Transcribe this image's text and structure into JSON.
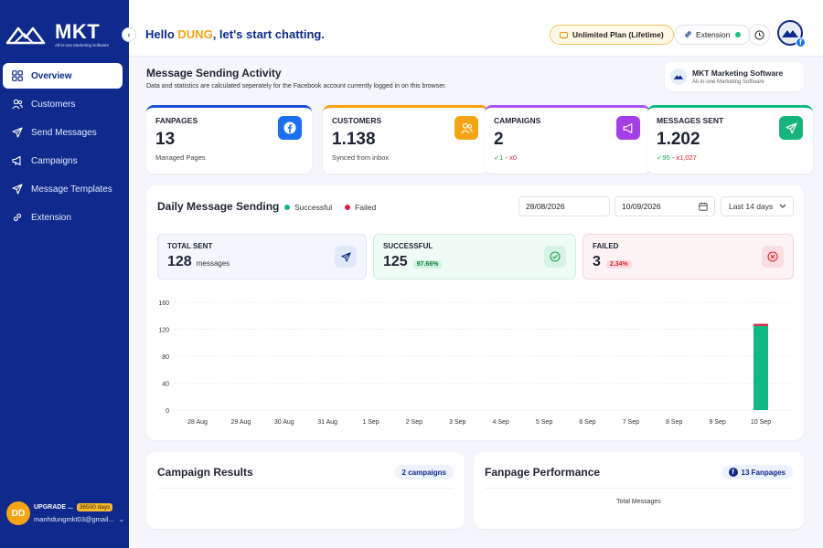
{
  "sidebar": {
    "brand": "MKT",
    "tagline": "All-in-one Marketing Software",
    "items": [
      {
        "label": "Overview",
        "icon": "grid-icon",
        "active": true
      },
      {
        "label": "Customers",
        "icon": "users-icon",
        "active": false
      },
      {
        "label": "Send Messages",
        "icon": "send-icon",
        "active": false
      },
      {
        "label": "Campaigns",
        "icon": "megaphone-icon",
        "active": false
      },
      {
        "label": "Message Templates",
        "icon": "send-icon",
        "active": false
      },
      {
        "label": "Extension",
        "icon": "link-icon",
        "active": false
      }
    ],
    "user": {
      "initials": "DD",
      "role": "UPGRADE ...",
      "days": "36500 days",
      "email": "manhdungmkt03@gmail..."
    }
  },
  "header": {
    "greeting_prefix": "Hello ",
    "user_name": "DUNG",
    "greeting_suffix": ", let's start chatting.",
    "plan": "Unlimited Plan (Lifetime)",
    "extension": "Extension"
  },
  "activity": {
    "title": "Message Sending Activity",
    "subtitle": "Data and statistics are calculated seperately for the Facebook account currently logged in on this browser.",
    "software_name": "MKT Marketing Software",
    "software_tag": "All-in-one Marketing Software"
  },
  "stats": [
    {
      "label": "FANPAGES",
      "value": "13",
      "sub": "Managed Pages",
      "color": "#1d4ed8",
      "icon": "facebook-icon"
    },
    {
      "label": "CUSTOMERS",
      "value": "1.138",
      "sub": "Synced from inbox",
      "color": "#f59e0b",
      "icon": "users-icon"
    },
    {
      "label": "CAMPAIGNS",
      "value": "2",
      "sub_ok": "✓1",
      "sub_sep": " - ",
      "sub_bad": "x0",
      "color": "#a855f7",
      "icon": "megaphone-icon"
    },
    {
      "label": "MESSAGES SENT",
      "value": "1.202",
      "sub_ok": "✓95",
      "sub_sep": " - ",
      "sub_bad": "x1,027",
      "color": "#10b981",
      "icon": "send-icon"
    }
  ],
  "daily": {
    "title": "Daily Message Sending",
    "legend_success": "Successful",
    "legend_failed": "Failed",
    "date_from": "28/08/2026",
    "date_to": "10/09/2026",
    "range": "Last 14 days",
    "total": {
      "label": "TOTAL SENT",
      "value": "128",
      "unit": "messages"
    },
    "success": {
      "label": "SUCCESSFUL",
      "value": "125",
      "pct": "97.66%"
    },
    "failed": {
      "label": "FAILED",
      "value": "3",
      "pct": "2.34%"
    }
  },
  "chart_data": {
    "type": "bar",
    "stacked": true,
    "categories": [
      "28 Aug",
      "29 Aug",
      "30 Aug",
      "31 Aug",
      "1 Sep",
      "2 Sep",
      "3 Sep",
      "4 Sep",
      "5 Sep",
      "6 Sep",
      "7 Sep",
      "8 Sep",
      "9 Sep",
      "10 Sep"
    ],
    "series": [
      {
        "name": "Successful",
        "color": "#10b981",
        "values": [
          0,
          0,
          0,
          0,
          0,
          0,
          0,
          0,
          0,
          0,
          0,
          0,
          0,
          125
        ]
      },
      {
        "name": "Failed",
        "color": "#e11d48",
        "values": [
          0,
          0,
          0,
          0,
          0,
          0,
          0,
          0,
          0,
          0,
          0,
          0,
          0,
          3
        ]
      }
    ],
    "yticks": [
      0,
      40,
      80,
      120,
      160
    ],
    "ylim": [
      0,
      160
    ],
    "grid": true
  },
  "campaign_results": {
    "title": "Campaign Results",
    "badge": "2 campaigns"
  },
  "fanpage_performance": {
    "title": "Fanpage Performance",
    "badge": "13 Fanpages",
    "note": "Total Messages"
  }
}
